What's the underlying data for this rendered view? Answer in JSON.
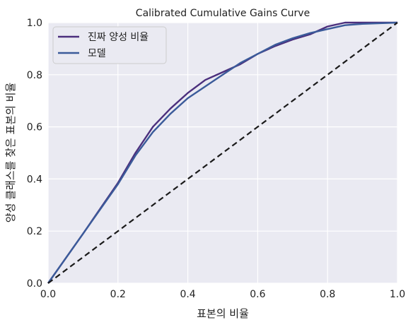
{
  "chart_data": {
    "type": "line",
    "title": "Calibrated Cumulative Gains Curve",
    "xlabel": "표본의 비율",
    "ylabel": "양성 클래스를 찾은 표본의 비율",
    "xlim": [
      0.0,
      1.0
    ],
    "ylim": [
      0.0,
      1.0
    ],
    "x_ticks": [
      "0.0",
      "0.2",
      "0.4",
      "0.6",
      "0.8",
      "1.0"
    ],
    "y_ticks": [
      "0.0",
      "0.2",
      "0.4",
      "0.6",
      "0.8",
      "1.0"
    ],
    "grid": true,
    "legend_position": "top-left",
    "series": [
      {
        "name": "진짜 양성 비율",
        "color": "#4b2f7d",
        "x": [
          0.0,
          0.1,
          0.2,
          0.25,
          0.3,
          0.35,
          0.4,
          0.45,
          0.5,
          0.55,
          0.6,
          0.65,
          0.7,
          0.75,
          0.8,
          0.85,
          0.9,
          1.0
        ],
        "y": [
          0.0,
          0.19,
          0.385,
          0.5,
          0.6,
          0.67,
          0.73,
          0.78,
          0.81,
          0.84,
          0.88,
          0.91,
          0.935,
          0.955,
          0.985,
          1.0,
          1.0,
          1.0
        ]
      },
      {
        "name": "모델",
        "color": "#3b5b9a",
        "x": [
          0.0,
          0.1,
          0.2,
          0.25,
          0.3,
          0.35,
          0.4,
          0.45,
          0.5,
          0.55,
          0.6,
          0.65,
          0.7,
          0.75,
          0.8,
          0.85,
          0.9,
          1.0
        ],
        "y": [
          0.0,
          0.19,
          0.38,
          0.49,
          0.58,
          0.65,
          0.71,
          0.755,
          0.8,
          0.845,
          0.88,
          0.915,
          0.94,
          0.96,
          0.975,
          0.99,
          0.995,
          1.0
        ]
      },
      {
        "name": "",
        "color": "#1a1a1a",
        "dashed": true,
        "x": [
          0.0,
          1.0
        ],
        "y": [
          0.0,
          1.0
        ]
      }
    ]
  }
}
